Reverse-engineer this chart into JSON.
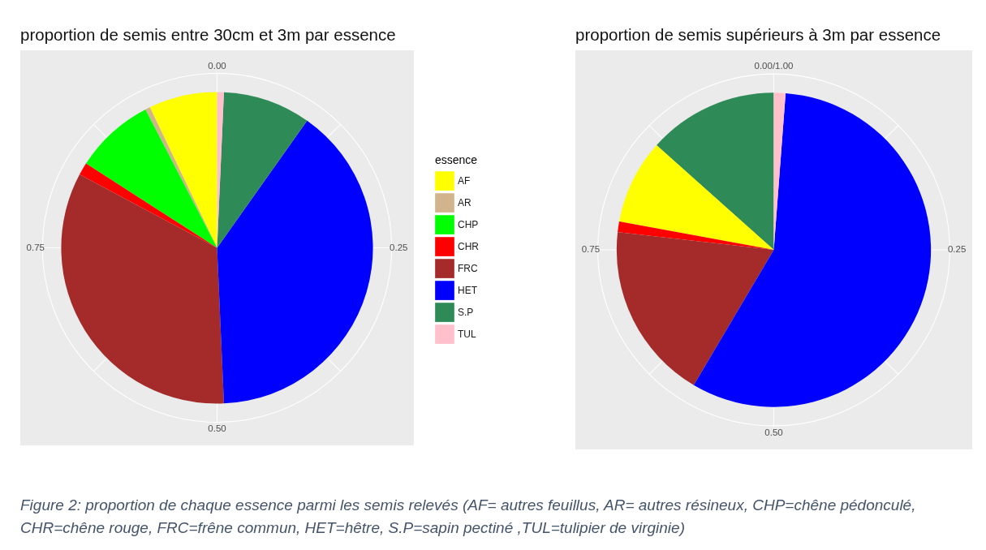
{
  "chart_data": [
    {
      "type": "pie",
      "title": "proportion de semis entre 30cm et 3m par essence",
      "legend_title": "essence",
      "categories": [
        "AF",
        "AR",
        "CHP",
        "CHR",
        "FRC",
        "HET",
        "S.P",
        "TUL"
      ],
      "values": [
        0.071,
        0.005,
        0.083,
        0.013,
        0.335,
        0.395,
        0.091,
        0.007
      ],
      "colors": [
        "#ffff00",
        "#d2b48c",
        "#00ff00",
        "#ff0000",
        "#a52a2a",
        "#0000ff",
        "#2e8b57",
        "#ffc0cb"
      ],
      "annotations": [
        "0.00",
        "0.25",
        "0.50",
        "0.75"
      ],
      "grid": true,
      "legend": "right"
    },
    {
      "type": "pie",
      "title": "proportion de semis supérieurs à 3m par essence",
      "categories": [
        null,
        null,
        null,
        null,
        null,
        null
      ],
      "values": [
        0.134,
        0.087,
        0.011,
        0.183,
        0.573,
        0.012
      ],
      "colors": [
        "#2e8b57",
        "#ffff00",
        "#ff0000",
        "#a52a2a",
        "#0000ff",
        "#ffc0cb"
      ],
      "annotations": [
        "0.00/1.00",
        "0.25",
        "0.50",
        "0.75"
      ],
      "grid": true,
      "legend": false
    },
    {
      "type": "other",
      "annotations": [
        "Figure 2: proportion de chaque essence parmi les semis relevés (AF= autres feuillus, AR= autres résineux, CHP=chêne pédonculé,\nCHR=chêne rouge, FRC=frêne commun, HET=hêtre, S.P=sapin pectiné ,TUL=tulipier de virginie)"
      ]
    }
  ]
}
